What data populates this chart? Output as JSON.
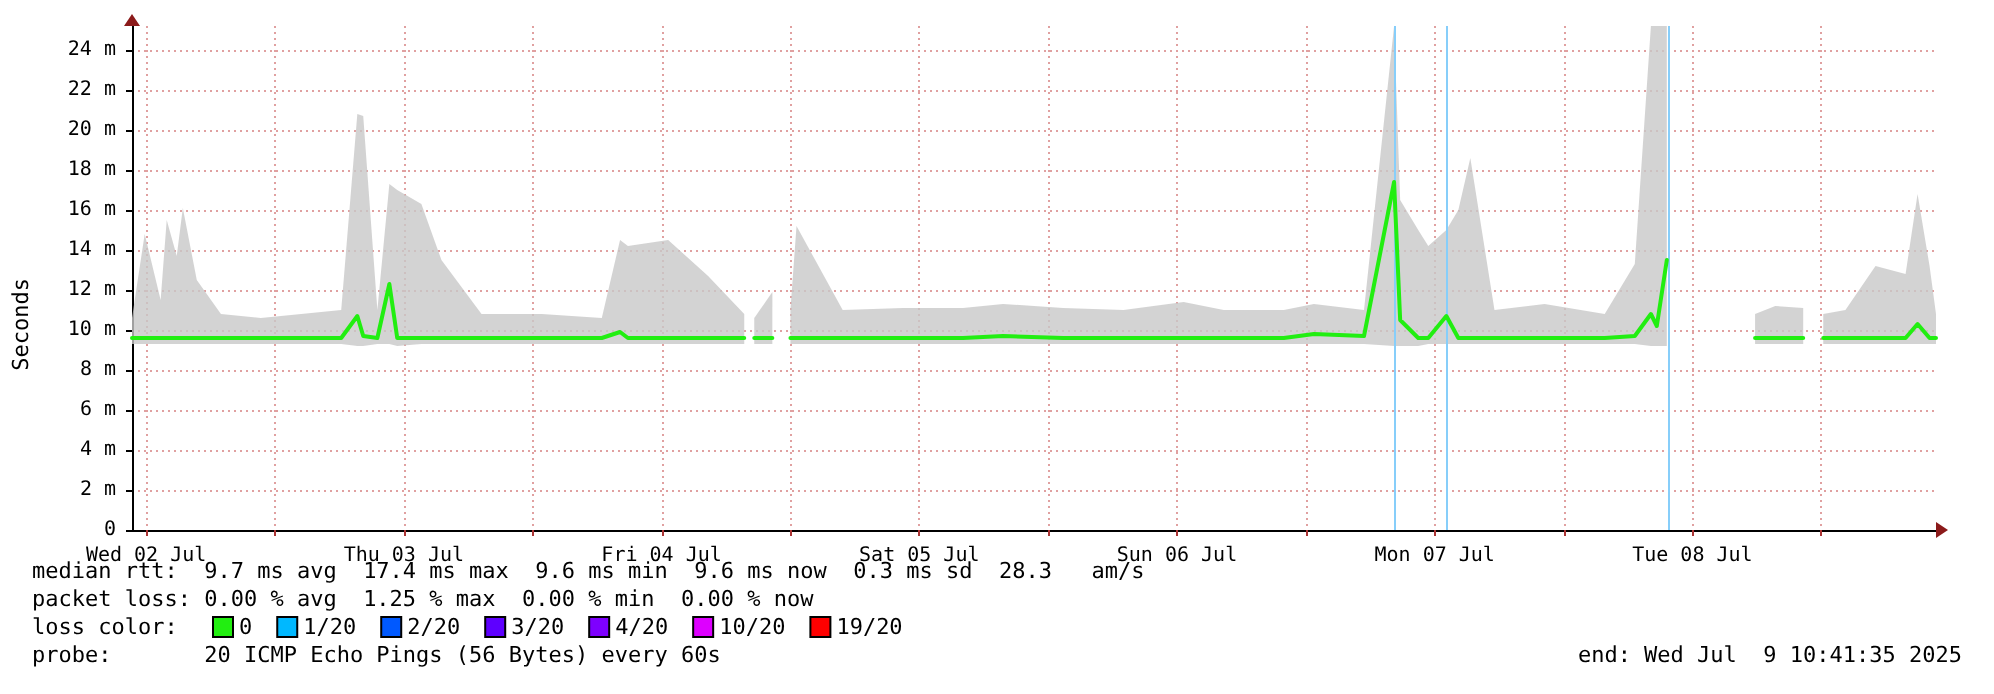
{
  "chart_data": {
    "type": "line",
    "ylabel": "Seconds",
    "legend_title": "loss color:",
    "legend": "bottom left",
    "grid": true,
    "marker": "none",
    "line_style": "solid",
    "xlim": [
      "2025-07-02T10:41",
      "2025-07-09T10:41"
    ],
    "xticks": [
      {
        "value": "2025-07-02T12:00",
        "label": "Wed 02 Jul"
      },
      {
        "value": "2025-07-03T00:00",
        "label": null
      },
      {
        "value": "2025-07-03T12:00",
        "label": "Thu 03 Jul"
      },
      {
        "value": "2025-07-04T00:00",
        "label": null
      },
      {
        "value": "2025-07-04T12:00",
        "label": "Fri 04 Jul"
      },
      {
        "value": "2025-07-05T00:00",
        "label": null
      },
      {
        "value": "2025-07-05T12:00",
        "label": "Sat 05 Jul"
      },
      {
        "value": "2025-07-06T00:00",
        "label": null
      },
      {
        "value": "2025-07-06T12:00",
        "label": "Sun 06 Jul"
      },
      {
        "value": "2025-07-07T00:00",
        "label": null
      },
      {
        "value": "2025-07-07T12:00",
        "label": "Mon 07 Jul"
      },
      {
        "value": "2025-07-08T00:00",
        "label": null
      },
      {
        "value": "2025-07-08T12:00",
        "label": "Tue 08 Jul"
      },
      {
        "value": "2025-07-09T00:00",
        "label": null
      }
    ],
    "ylim": [
      0,
      25.2
    ],
    "yticks": [
      0,
      {
        "value": 2,
        "label": "2 m"
      },
      {
        "value": 4,
        "label": "4 m"
      },
      {
        "value": 6,
        "label": "6 m"
      },
      {
        "value": 8,
        "label": "8 m"
      },
      {
        "value": 10,
        "label": "10 m"
      },
      {
        "value": 12,
        "label": "12 m"
      },
      {
        "value": 14,
        "label": "14 m"
      },
      {
        "value": 16,
        "label": "16 m"
      },
      {
        "value": 18,
        "label": "18 m"
      },
      {
        "value": 20,
        "label": "20 m"
      },
      {
        "value": 22,
        "label": "22 m"
      },
      {
        "value": 24,
        "label": "24 m"
      }
    ],
    "series": [
      {
        "name": "0",
        "color": "#22ee11",
        "x": [
          "2025-07-02T10:41",
          "2025-07-02T11:52",
          "2025-07-02T13:21",
          "2025-07-02T13:55",
          "2025-07-02T14:51",
          "2025-07-02T15:25",
          "2025-07-02T16:43",
          "2025-07-02T18:58",
          "2025-07-02T22:41",
          "2025-07-03T02:26",
          "2025-07-03T06:10",
          "2025-07-03T07:40",
          "2025-07-03T08:13",
          "2025-07-03T09:32",
          "2025-07-03T10:39",
          "2025-07-03T11:23",
          "2025-07-03T13:38",
          "2025-07-03T15:30",
          "2025-07-03T19:14",
          "2025-07-04T00:50",
          "2025-07-04T06:26",
          "2025-07-04T08:08",
          "2025-07-04T08:52",
          "2025-07-04T12:37",
          "2025-07-04T16:20",
          "2025-07-04T19:42",
          "2025-07-04T20:10",
          "2025-07-04T20:38",
          "2025-07-04T22:19",
          "2025-07-04T23:10",
          "2025-07-05T00:00",
          "2025-07-05T00:34",
          "2025-07-05T04:52",
          "2025-07-05T10:28",
          "2025-07-05T16:04",
          "2025-07-05T19:48",
          "2025-07-06T01:24",
          "2025-07-06T07:01",
          "2025-07-06T12:37",
          "2025-07-06T16:21",
          "2025-07-06T21:57",
          "2025-07-07T00:45",
          "2025-07-07T05:25",
          "2025-07-07T08:13",
          "2025-07-07T08:47",
          "2025-07-07T10:28",
          "2025-07-07T11:24",
          "2025-07-07T13:05",
          "2025-07-07T14:12",
          "2025-07-07T15:19",
          "2025-07-07T17:34",
          "2025-07-07T22:14",
          "2025-07-08T03:50",
          "2025-07-08T06:38",
          "2025-07-08T08:08",
          "2025-07-08T08:41",
          "2025-07-08T09:37",
          "2025-07-08T13:00",
          "2025-07-08T17:50",
          "2025-07-08T19:43",
          "2025-07-08T22:19",
          "2025-07-08T23:15",
          "2025-07-09T00:11",
          "2025-07-09T02:15",
          "2025-07-09T05:03",
          "2025-07-09T07:51",
          "2025-07-09T08:58",
          "2025-07-09T10:05",
          "2025-07-09T10:41"
        ],
        "values": [
          9.6,
          9.6,
          9.6,
          9.6,
          9.6,
          9.6,
          9.6,
          9.6,
          9.6,
          9.6,
          9.6,
          10.7,
          9.7,
          9.6,
          12.3,
          9.6,
          9.6,
          9.6,
          9.6,
          9.6,
          9.6,
          9.9,
          9.6,
          9.6,
          9.6,
          9.6,
          null,
          9.6,
          9.6,
          null,
          9.6,
          9.6,
          9.6,
          9.6,
          9.6,
          9.7,
          9.6,
          9.6,
          9.6,
          9.6,
          9.6,
          9.8,
          9.7,
          17.4,
          10.5,
          9.6,
          9.6,
          10.7,
          9.6,
          9.6,
          9.6,
          9.6,
          9.6,
          9.7,
          10.8,
          10.2,
          13.5,
          null,
          9.6,
          9.6,
          9.6,
          null,
          9.6,
          9.6,
          9.6,
          9.6,
          10.3,
          9.6,
          9.6
        ],
        "lower": [
          9.3,
          9.3,
          9.3,
          9.3,
          9.3,
          9.3,
          9.3,
          9.3,
          9.3,
          9.3,
          9.3,
          9.2,
          9.2,
          9.3,
          9.3,
          9.2,
          9.3,
          9.3,
          9.3,
          9.3,
          9.3,
          9.3,
          9.3,
          9.3,
          9.3,
          9.3,
          null,
          9.3,
          9.3,
          null,
          9.3,
          9.3,
          9.3,
          9.3,
          9.3,
          9.3,
          9.3,
          9.3,
          9.3,
          9.3,
          9.3,
          9.3,
          9.3,
          9.2,
          9.2,
          9.2,
          9.3,
          9.3,
          9.3,
          9.3,
          9.3,
          9.3,
          9.3,
          9.3,
          9.2,
          9.2,
          9.2,
          null,
          9.3,
          9.3,
          9.3,
          null,
          9.3,
          9.3,
          9.3,
          9.3,
          9.3,
          9.3,
          9.3
        ],
        "upper": [
          10.6,
          14.8,
          11.5,
          15.5,
          13.7,
          16.1,
          12.5,
          10.8,
          10.6,
          10.8,
          11,
          20.8,
          20.7,
          11,
          17.3,
          17,
          16.3,
          13.5,
          10.8,
          10.8,
          10.6,
          14.5,
          14.2,
          14.5,
          12.7,
          10.8,
          null,
          10.6,
          11.9,
          null,
          11,
          15.2,
          11,
          11.1,
          11.1,
          11.3,
          11.1,
          11,
          11.4,
          11,
          11,
          11.3,
          11,
          25.2,
          16.5,
          15,
          14.2,
          15,
          16,
          18.6,
          11,
          11.3,
          10.8,
          13.3,
          25.2,
          25.2,
          25.2,
          null,
          10.8,
          11.2,
          11.1,
          null,
          10.8,
          11,
          13.2,
          12.8,
          16.8,
          13.2,
          10.8
        ]
      },
      {
        "name": "1/20",
        "color": "#00b8ff"
      },
      {
        "name": "2/20",
        "color": "#0059ff"
      },
      {
        "name": "3/20",
        "color": "#5e00ff"
      },
      {
        "name": "4/20",
        "color": "#7e00ff"
      },
      {
        "name": "10/20",
        "color": "#dd00ff"
      },
      {
        "name": "19/20",
        "color": "#ff0000"
      }
    ],
    "ref_lines": [
      {
        "axis": "x",
        "value": "2025-07-07T08:13",
        "color": "#87cefa"
      },
      {
        "axis": "x",
        "value": "2025-07-07T13:05",
        "color": "#87cefa"
      },
      {
        "axis": "x",
        "value": "2025-07-08T09:49",
        "color": "#87cefa"
      }
    ],
    "annotations": [
      "median rtt:  9.7 ms avg  17.4 ms max  9.6 ms min  9.6 ms now  0.3 ms sd  28.3   am/s",
      "packet loss: 0.00 % avg  1.25 % max  0.00 % min  0.00 % now",
      "probe:       20 ICMP Echo Pings (56 Bytes) every 60s",
      "end: Wed Jul  9 10:41:35 2025"
    ]
  }
}
